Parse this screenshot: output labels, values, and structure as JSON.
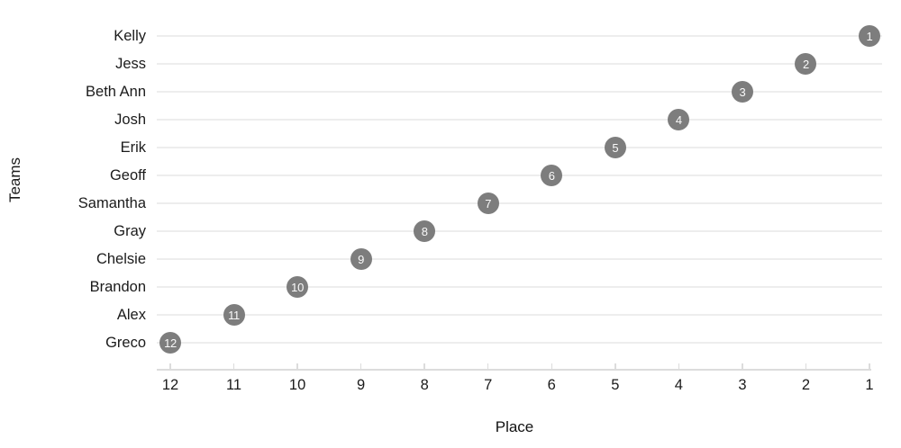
{
  "chart_data": {
    "type": "scatter",
    "title": "",
    "xlabel": "Place",
    "ylabel": "Teams",
    "categories": [
      "Kelly",
      "Jess",
      "Beth Ann",
      "Josh",
      "Erik",
      "Geoff",
      "Samantha",
      "Gray",
      "Chelsie",
      "Brandon",
      "Alex",
      "Greco"
    ],
    "points": [
      {
        "team": "Kelly",
        "place": 1,
        "label": "1"
      },
      {
        "team": "Jess",
        "place": 2,
        "label": "2"
      },
      {
        "team": "Beth Ann",
        "place": 3,
        "label": "3"
      },
      {
        "team": "Josh",
        "place": 4,
        "label": "4"
      },
      {
        "team": "Erik",
        "place": 5,
        "label": "5"
      },
      {
        "team": "Geoff",
        "place": 6,
        "label": "6"
      },
      {
        "team": "Samantha",
        "place": 7,
        "label": "7"
      },
      {
        "team": "Gray",
        "place": 8,
        "label": "8"
      },
      {
        "team": "Chelsie",
        "place": 9,
        "label": "9"
      },
      {
        "team": "Brandon",
        "place": 10,
        "label": "10"
      },
      {
        "team": "Alex",
        "place": 11,
        "label": "11"
      },
      {
        "team": "Greco",
        "place": 12,
        "label": "12"
      }
    ],
    "x_ticks": [
      "12",
      "11",
      "10",
      "9",
      "8",
      "7",
      "6",
      "5",
      "4",
      "3",
      "2",
      "1"
    ],
    "x_axis": {
      "min": 1,
      "max": 12,
      "reversed": true
    },
    "grid": "horizontal",
    "legend": "none",
    "colors": {
      "dot_fill": "#7d7d7d",
      "dot_text": "#fafafa",
      "grid_line": "#ededed",
      "axis_line": "#dcdcdc",
      "label_text": "#1b1b1b"
    }
  }
}
